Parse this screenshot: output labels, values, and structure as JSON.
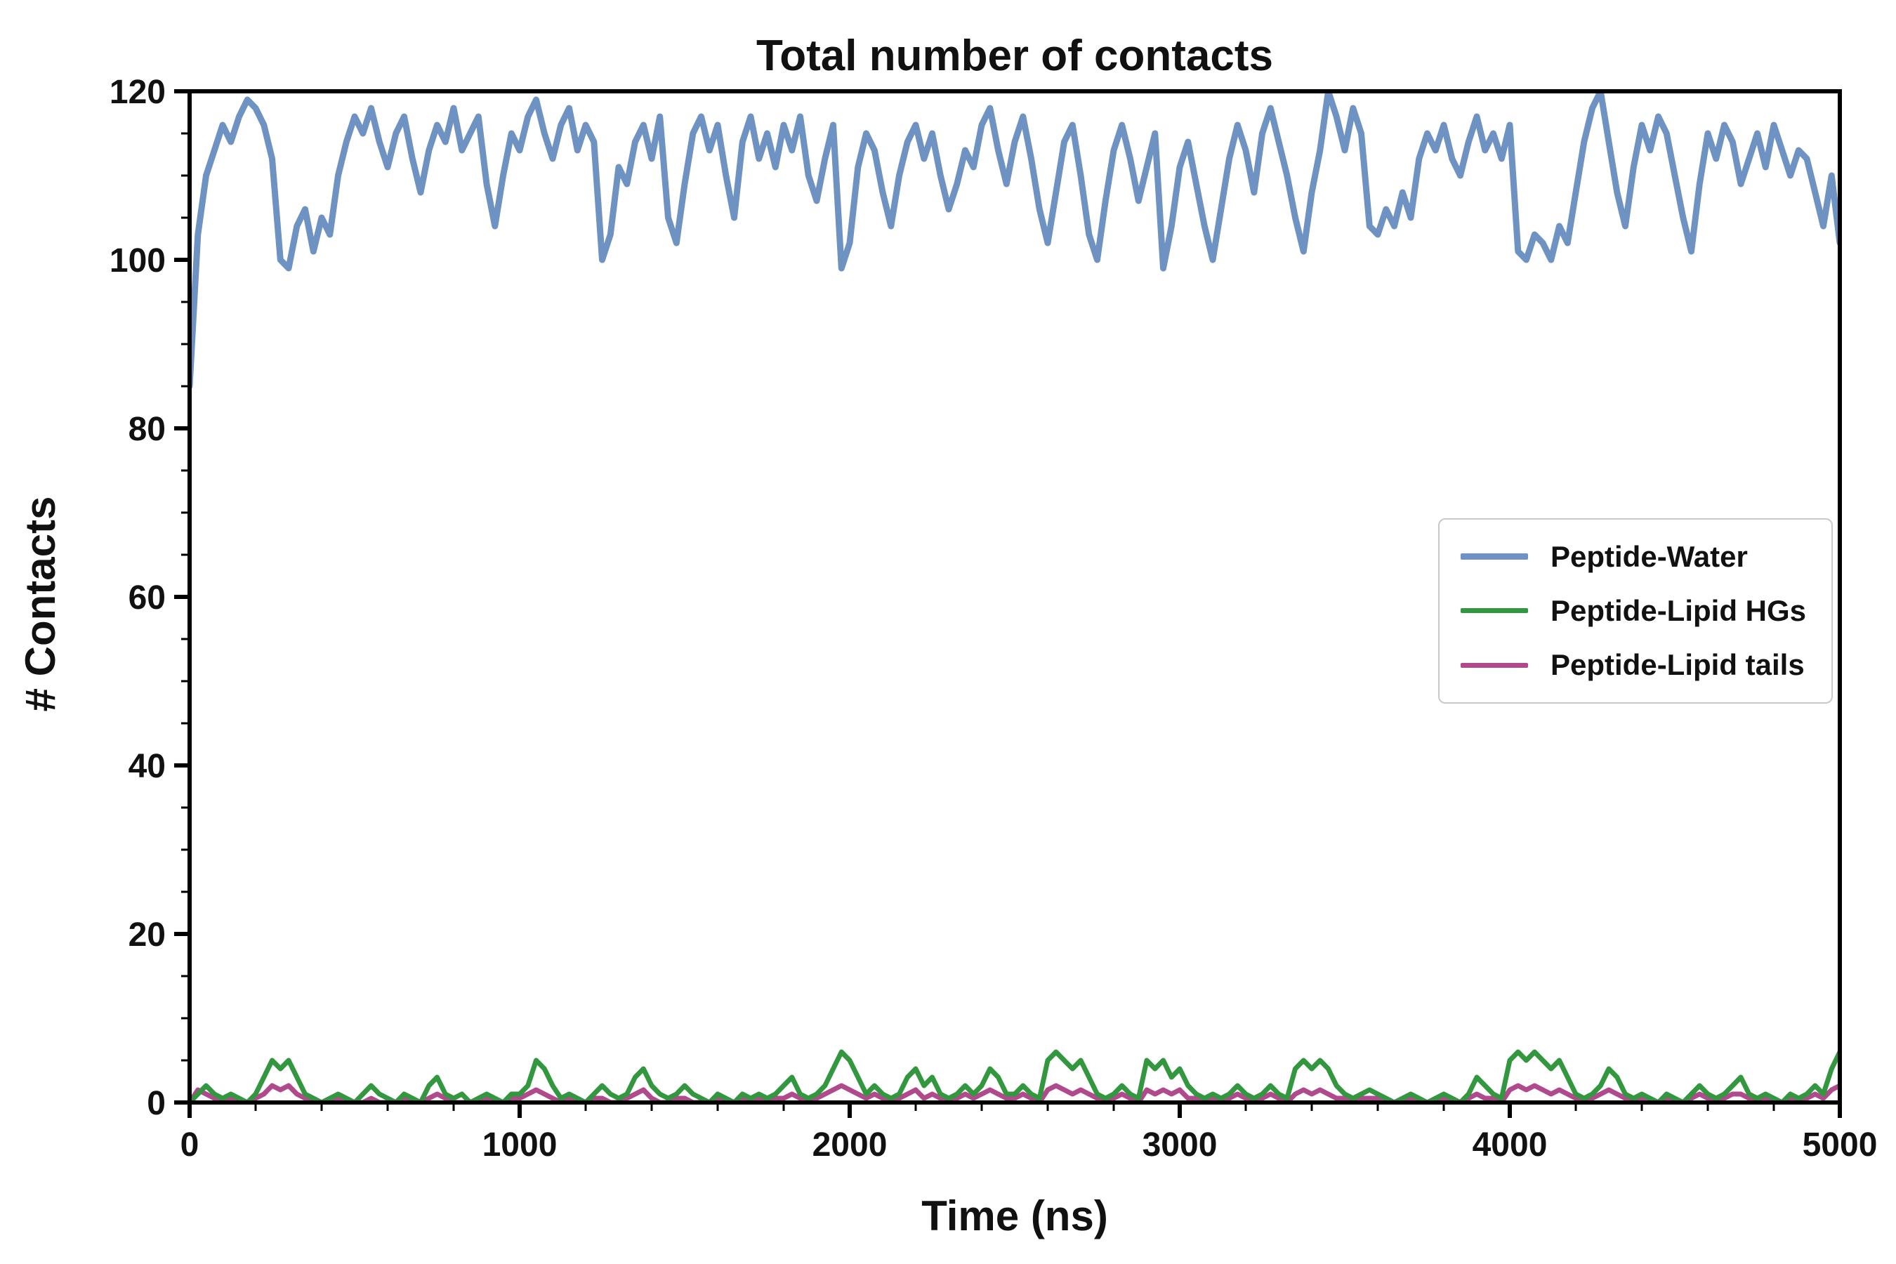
{
  "chart_data": {
    "type": "line",
    "title": "Total number of contacts",
    "xlabel": "Time (ns)",
    "ylabel": "# Contacts",
    "xlim": [
      0,
      5000
    ],
    "ylim": [
      0,
      120
    ],
    "x_ticks": [
      "0",
      "1000",
      "2000",
      "3000",
      "4000",
      "5000"
    ],
    "x_tick_values": [
      0,
      1000,
      2000,
      3000,
      4000,
      5000
    ],
    "y_ticks": [
      "0",
      "20",
      "40",
      "60",
      "80",
      "100",
      "120"
    ],
    "y_tick_values": [
      0,
      20,
      40,
      60,
      80,
      100,
      120
    ],
    "x_minor_step": 200,
    "y_minor_step": 5,
    "grid": false,
    "legend_position": "center-right",
    "x_start": 0,
    "x_step": 25,
    "series": [
      {
        "name": "Peptide-Water",
        "color": "#6e93c2",
        "width": 9,
        "values": [
          85,
          103,
          110,
          113,
          116,
          114,
          117,
          119,
          118,
          116,
          112,
          100,
          99,
          104,
          106,
          101,
          105,
          103,
          110,
          114,
          117,
          115,
          118,
          114,
          111,
          115,
          117,
          112,
          108,
          113,
          116,
          114,
          118,
          113,
          115,
          117,
          109,
          104,
          110,
          115,
          113,
          117,
          119,
          115,
          112,
          116,
          118,
          113,
          116,
          114,
          100,
          103,
          111,
          109,
          114,
          116,
          112,
          117,
          105,
          102,
          109,
          115,
          117,
          113,
          116,
          110,
          105,
          114,
          117,
          112,
          115,
          111,
          116,
          113,
          117,
          110,
          107,
          112,
          116,
          99,
          102,
          111,
          115,
          113,
          108,
          104,
          110,
          114,
          116,
          112,
          115,
          110,
          106,
          109,
          113,
          111,
          116,
          118,
          113,
          109,
          114,
          117,
          112,
          106,
          102,
          108,
          114,
          116,
          110,
          103,
          100,
          107,
          113,
          116,
          112,
          107,
          111,
          115,
          99,
          104,
          111,
          114,
          109,
          104,
          100,
          106,
          112,
          116,
          113,
          108,
          115,
          118,
          114,
          110,
          105,
          101,
          108,
          113,
          120,
          117,
          113,
          118,
          115,
          104,
          103,
          106,
          104,
          108,
          105,
          112,
          115,
          113,
          116,
          112,
          110,
          114,
          117,
          113,
          115,
          112,
          116,
          101,
          100,
          103,
          102,
          100,
          104,
          102,
          108,
          114,
          118,
          120,
          114,
          108,
          104,
          111,
          116,
          113,
          117,
          115,
          110,
          105,
          101,
          109,
          115,
          112,
          116,
          114,
          109,
          112,
          115,
          111,
          116,
          113,
          110,
          113,
          112,
          108,
          104,
          110,
          102
        ]
      },
      {
        "name": "Peptide-Lipid HGs",
        "color": "#33973f",
        "width": 7,
        "values": [
          0,
          1,
          2,
          1,
          0.5,
          1,
          0.5,
          0,
          1,
          3,
          5,
          4,
          5,
          3,
          1,
          0.5,
          0,
          0.5,
          1,
          0.5,
          0,
          1,
          2,
          1,
          0.5,
          0,
          1,
          0.5,
          0,
          2,
          3,
          1,
          0.5,
          1,
          0,
          0.5,
          1,
          0.5,
          0,
          1,
          1,
          2,
          5,
          4,
          2,
          0.5,
          1,
          0.5,
          0,
          1,
          2,
          1,
          0.5,
          1,
          3,
          4,
          2,
          1,
          0.5,
          1,
          2,
          1,
          0.5,
          0,
          1,
          0.5,
          0,
          1,
          0.5,
          1,
          0.5,
          1,
          2,
          3,
          1,
          0.5,
          1,
          2,
          4,
          6,
          5,
          3,
          1,
          2,
          1,
          0.5,
          1,
          3,
          4,
          2,
          3,
          1,
          0.5,
          1,
          2,
          1,
          2,
          4,
          3,
          1,
          1,
          2,
          1,
          0.5,
          5,
          6,
          5,
          4,
          5,
          3,
          1,
          0.5,
          1,
          2,
          1,
          0.5,
          5,
          4,
          5,
          3,
          4,
          2,
          1,
          0.5,
          1,
          0.5,
          1,
          2,
          1,
          0.5,
          1,
          2,
          1,
          0.5,
          4,
          5,
          4,
          5,
          4,
          2,
          1,
          0.5,
          1,
          1.5,
          1,
          0.5,
          0,
          0.5,
          1,
          0.5,
          0,
          0.5,
          1,
          0.5,
          0,
          1,
          3,
          2,
          1,
          0.5,
          5,
          6,
          5,
          6,
          5,
          4,
          5,
          3,
          1,
          0.5,
          1,
          2,
          4,
          3,
          1,
          0.5,
          1,
          0.5,
          0,
          1,
          0.5,
          0,
          1,
          2,
          1,
          0.5,
          1,
          2,
          3,
          1,
          0.5,
          1,
          0.5,
          0,
          1,
          0.5,
          1,
          2,
          1,
          4,
          6
        ]
      },
      {
        "name": "Peptide-Lipid tails",
        "color": "#b04a8c",
        "width": 7,
        "values": [
          0,
          1.5,
          1,
          0.5,
          0,
          0.5,
          0,
          0,
          0.5,
          1,
          2,
          1.5,
          2,
          1,
          0.5,
          0,
          0,
          0,
          0.5,
          0,
          0,
          0,
          0.5,
          0,
          0,
          0,
          0.5,
          0,
          0,
          0.5,
          1,
          0.5,
          0,
          0,
          0,
          0,
          0.5,
          0,
          0,
          0.5,
          0.5,
          1,
          1.5,
          1,
          0.5,
          0,
          0.5,
          0,
          0,
          0.5,
          0.5,
          0,
          0,
          0.5,
          1,
          1.5,
          0.5,
          0,
          0,
          0.5,
          0.5,
          0,
          0,
          0,
          0.5,
          0,
          0,
          0.5,
          0,
          0.5,
          0,
          0.5,
          0.5,
          1,
          0.5,
          0,
          0.5,
          1,
          1.5,
          2,
          1.5,
          1,
          0.5,
          1,
          0.5,
          0,
          0.5,
          1,
          1.5,
          0.5,
          1,
          0.5,
          0,
          0.5,
          1,
          0.5,
          1,
          1.5,
          1,
          0.5,
          0.5,
          1,
          0.5,
          0,
          1.5,
          2,
          1.5,
          1,
          1.5,
          1,
          0.5,
          0,
          0.5,
          1,
          0.5,
          0,
          1.5,
          1,
          1.5,
          1,
          1.5,
          0.5,
          0.5,
          0,
          0.5,
          0,
          0.5,
          1,
          0.5,
          0,
          0.5,
          1,
          0.5,
          0,
          1,
          1.5,
          1,
          1.5,
          1,
          0.5,
          0.5,
          0,
          0.5,
          0.5,
          0.5,
          0,
          0,
          0,
          0.5,
          0,
          0,
          0,
          0.5,
          0,
          0,
          0.5,
          1,
          0.5,
          0.5,
          0,
          1.5,
          2,
          1.5,
          2,
          1.5,
          1,
          1.5,
          1,
          0.5,
          0,
          0.5,
          1,
          1.5,
          1,
          0.5,
          0,
          0.5,
          0,
          0,
          0.5,
          0,
          0,
          0.5,
          1,
          0.5,
          0,
          0.5,
          1,
          1,
          0.5,
          0,
          0.5,
          0,
          0,
          0.5,
          0,
          0.5,
          1,
          0.5,
          1.5,
          2
        ]
      }
    ],
    "legend_entries": [
      "Peptide-Water",
      "Peptide-Lipid HGs",
      "Peptide-Lipid tails"
    ]
  },
  "style": {
    "axis_color": "#000000",
    "background": "#ffffff",
    "legend_border": "#c9c9c9"
  }
}
